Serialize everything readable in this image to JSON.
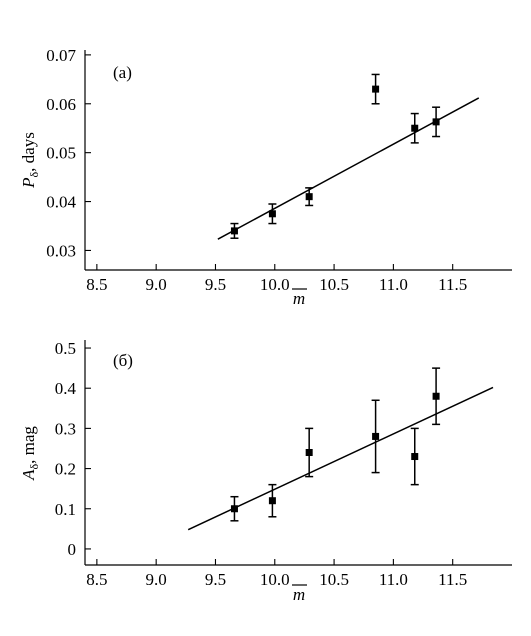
{
  "chart_data": [
    {
      "type": "scatter",
      "panel_label": "(a)",
      "ylabel": {
        "symbol": "P",
        "sub": "δ",
        "rest": ", days"
      },
      "xlabel": "m",
      "xlim": [
        8.4,
        12.0
      ],
      "ylim": [
        0.026,
        0.071
      ],
      "xticks": [
        "8.5",
        "9.0",
        "9.5",
        "10.0",
        "10.5",
        "11.0",
        "11.5"
      ],
      "yticks": [
        "0.03",
        "0.04",
        "0.05",
        "0.06",
        "0.07"
      ],
      "grid": false,
      "points": [
        {
          "x": 9.66,
          "y": 0.034,
          "err": 0.0015
        },
        {
          "x": 9.98,
          "y": 0.0375,
          "err": 0.002
        },
        {
          "x": 10.29,
          "y": 0.041,
          "err": 0.0018
        },
        {
          "x": 10.85,
          "y": 0.063,
          "err": 0.003
        },
        {
          "x": 11.18,
          "y": 0.055,
          "err": 0.003
        },
        {
          "x": 11.36,
          "y": 0.0563,
          "err": 0.003
        }
      ],
      "fit_line": {
        "x": [
          9.52,
          11.72
        ],
        "y": [
          0.0323,
          0.0612
        ]
      }
    },
    {
      "type": "scatter",
      "panel_label": "(б)",
      "ylabel": {
        "symbol": "A",
        "sub": "δ",
        "rest": ", mag"
      },
      "xlabel": "m",
      "xlim": [
        8.4,
        12.0
      ],
      "ylim": [
        -0.04,
        0.52
      ],
      "xticks": [
        "8.5",
        "9.0",
        "9.5",
        "10.0",
        "10.5",
        "11.0",
        "11.5"
      ],
      "yticks": [
        "0",
        "0.1",
        "0.2",
        "0.3",
        "0.4",
        "0.5"
      ],
      "grid": false,
      "points": [
        {
          "x": 9.66,
          "y": 0.1,
          "err": 0.03
        },
        {
          "x": 9.98,
          "y": 0.12,
          "err": 0.04
        },
        {
          "x": 10.29,
          "y": 0.24,
          "err": 0.06
        },
        {
          "x": 10.85,
          "y": 0.28,
          "err": 0.09
        },
        {
          "x": 11.18,
          "y": 0.23,
          "err": 0.07
        },
        {
          "x": 11.36,
          "y": 0.38,
          "err": 0.07
        }
      ],
      "fit_line": {
        "x": [
          9.27,
          11.84
        ],
        "y": [
          0.048,
          0.402
        ]
      }
    }
  ]
}
